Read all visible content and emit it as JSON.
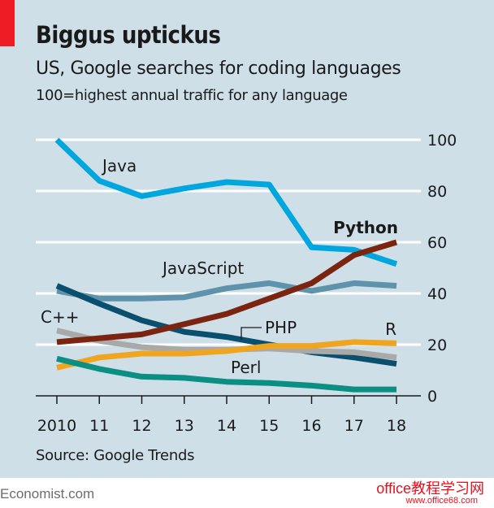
{
  "header": {
    "title": "Biggus uptickus",
    "subtitle": "US, Google searches for coding languages",
    "note": "100=highest annual traffic for any language"
  },
  "footer": {
    "source": "Source: Google Trends",
    "publisher": "Economist.com",
    "watermark_line1": "office教程学习网",
    "watermark_line2": "www.office68.com"
  },
  "colors": {
    "background": "#cfdfe8",
    "accent_red": "#ee1c25"
  },
  "chart_data": {
    "type": "line",
    "title": "Biggus uptickus",
    "subtitle": "US, Google searches for coding languages",
    "ylabel": "100=highest annual traffic for any language",
    "xlabel": "",
    "x": [
      2010,
      2011,
      2012,
      2013,
      2014,
      2015,
      2016,
      2017,
      2018
    ],
    "x_tick_labels": [
      "2010",
      "11",
      "12",
      "13",
      "14",
      "15",
      "16",
      "17",
      "18"
    ],
    "ylim": [
      0,
      100
    ],
    "y_ticks": [
      0,
      20,
      40,
      60,
      80,
      100
    ],
    "y_axis_side": "right",
    "grid": true,
    "legend": "inline labels",
    "series": [
      {
        "name": "Java",
        "color": "#00a6de",
        "values": [
          100,
          84,
          78,
          81,
          83.5,
          82.5,
          58,
          57,
          51.5
        ],
        "bold": false
      },
      {
        "name": "JavaScript",
        "color": "#5f93ab",
        "values": [
          41,
          38,
          38,
          38.5,
          42,
          44,
          41,
          44,
          43
        ],
        "bold": false
      },
      {
        "name": "PHP",
        "color": "#0a4f6e",
        "values": [
          43,
          36,
          29.5,
          25,
          23,
          20,
          17,
          15,
          12.5
        ],
        "bold": false
      },
      {
        "name": "C++",
        "color": "#a9a9a9",
        "values": [
          25.5,
          21.5,
          19,
          18,
          18,
          18.5,
          17.5,
          17,
          15
        ],
        "bold": false
      },
      {
        "name": "R",
        "color": "#efa51f",
        "values": [
          11,
          15,
          16.5,
          16.5,
          17.5,
          19.5,
          19.5,
          21,
          20.5
        ],
        "bold": false
      },
      {
        "name": "Perl",
        "color": "#0a8f82",
        "values": [
          14.5,
          10.5,
          7.5,
          7,
          5.5,
          5,
          4,
          2.5,
          2.5
        ],
        "bold": false
      },
      {
        "name": "Python",
        "color": "#7b2510",
        "values": [
          21,
          22.5,
          24,
          28,
          32,
          38,
          44,
          55,
          60
        ],
        "bold": true
      }
    ]
  }
}
